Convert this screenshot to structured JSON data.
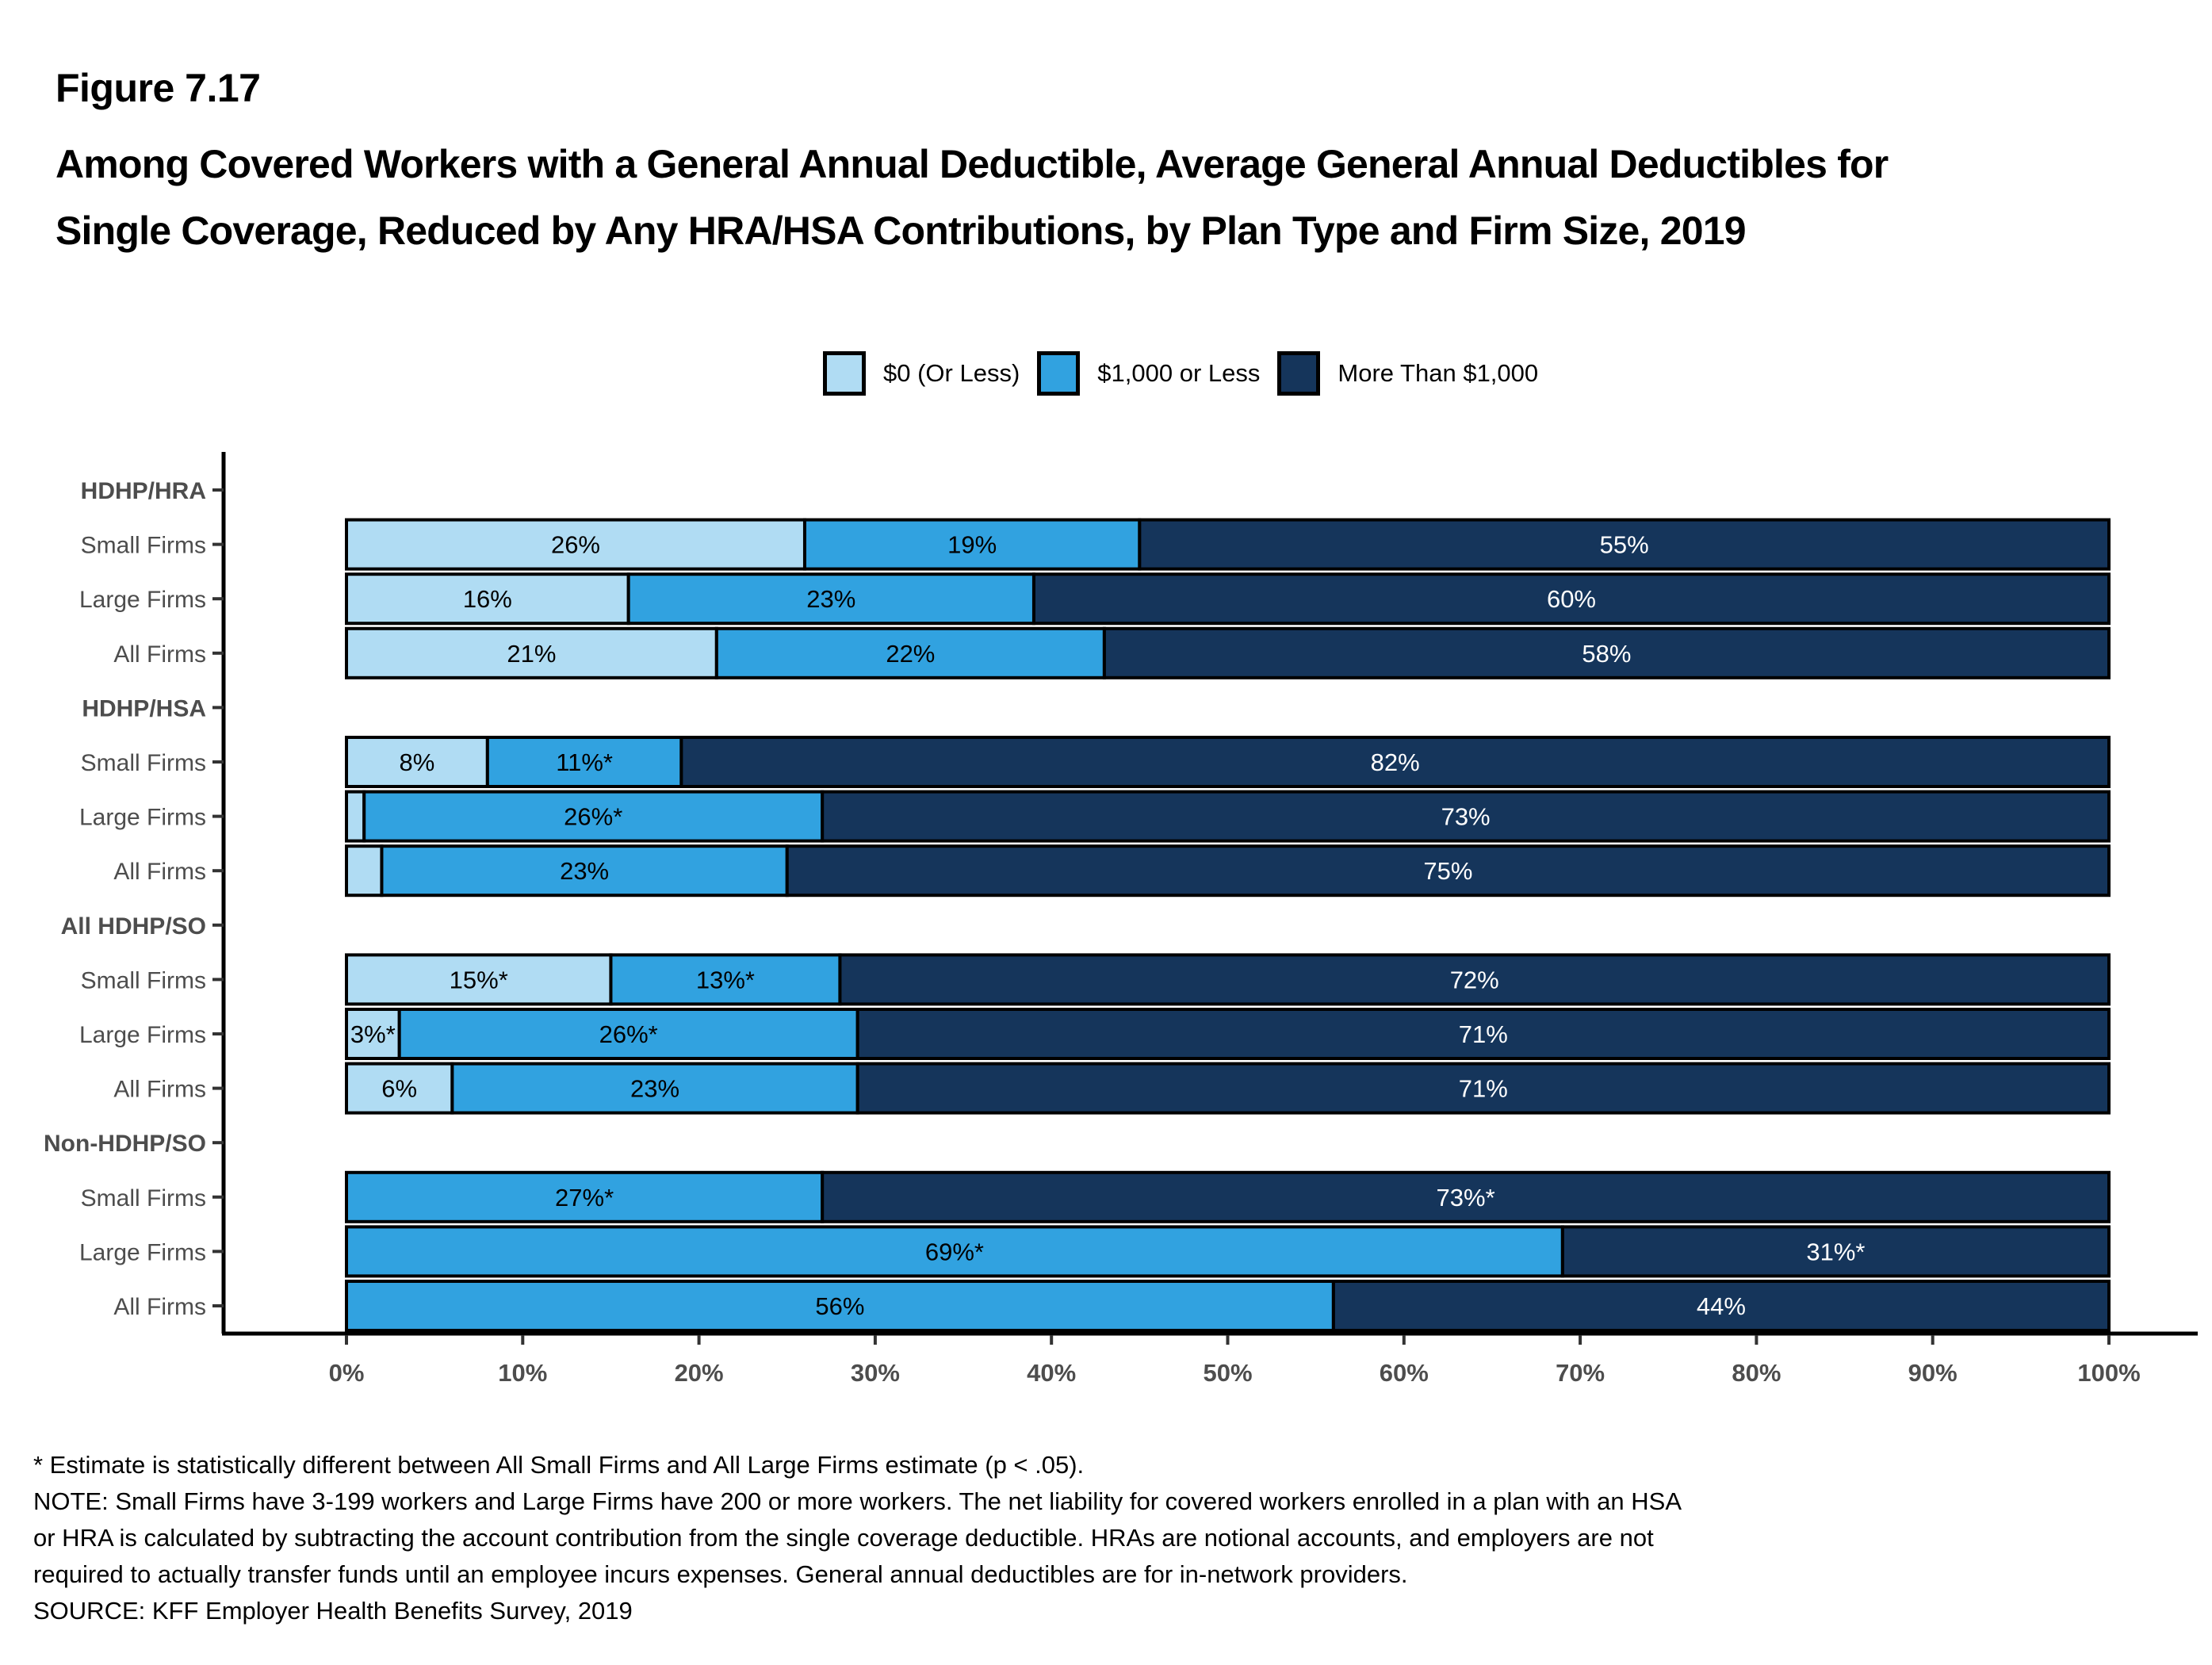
{
  "figure_number": "Figure 7.17",
  "title": "Among Covered Workers with a General Annual Deductible, Average General Annual Deductibles for Single Coverage, Reduced by Any HRA/HSA Contributions, by Plan Type and Firm Size, 2019",
  "legend": [
    {
      "label": "$0 (Or Less)",
      "color": "#b0dcf3"
    },
    {
      "label": "$1,000 or Less",
      "color": "#31a2e0"
    },
    {
      "label": "More Than $1,000",
      "color": "#15355b"
    }
  ],
  "chart_data": {
    "type": "bar",
    "orientation": "horizontal",
    "stacked": true,
    "title": "Among Covered Workers with a General Annual Deductible, Average General Annual Deductibles for Single Coverage, Reduced by Any HRA/HSA Contributions, by Plan Type and Firm Size, 2019",
    "xlabel": "",
    "ylabel": "",
    "xlim": [
      0,
      100
    ],
    "x_ticks": [
      "0%",
      "10%",
      "20%",
      "30%",
      "40%",
      "50%",
      "60%",
      "70%",
      "80%",
      "90%",
      "100%"
    ],
    "grid": false,
    "legend_position": "top",
    "series_names": [
      "$0 (Or Less)",
      "$1,000 or Less",
      "More Than $1,000"
    ],
    "series_colors": [
      "#b0dcf3",
      "#31a2e0",
      "#15355b"
    ],
    "groups": [
      {
        "name": "HDHP/HRA",
        "rows": [
          {
            "category": "Small Firms",
            "values": [
              26,
              19,
              55
            ],
            "labels": [
              "26%",
              "19%",
              "55%"
            ]
          },
          {
            "category": "Large Firms",
            "values": [
              16,
              23,
              60
            ],
            "labels": [
              "16%",
              "23%",
              "60%"
            ]
          },
          {
            "category": "All Firms",
            "values": [
              21,
              22,
              58
            ],
            "labels": [
              "21%",
              "22%",
              "58%"
            ]
          }
        ]
      },
      {
        "name": "HDHP/HSA",
        "rows": [
          {
            "category": "Small Firms",
            "values": [
              8,
              11,
              82
            ],
            "labels": [
              "8%",
              "11%*",
              "82%"
            ]
          },
          {
            "category": "Large Firms",
            "values": [
              1,
              26,
              73
            ],
            "labels": [
              "",
              "26%*",
              "73%"
            ]
          },
          {
            "category": "All Firms",
            "values": [
              2,
              23,
              75
            ],
            "labels": [
              "",
              "23%",
              "75%"
            ]
          }
        ]
      },
      {
        "name": "All HDHP/SO",
        "rows": [
          {
            "category": "Small Firms",
            "values": [
              15,
              13,
              72
            ],
            "labels": [
              "15%*",
              "13%*",
              "72%"
            ]
          },
          {
            "category": "Large Firms",
            "values": [
              3,
              26,
              71
            ],
            "labels": [
              "3%*",
              "26%*",
              "71%"
            ]
          },
          {
            "category": "All Firms",
            "values": [
              6,
              23,
              71
            ],
            "labels": [
              "6%",
              "23%",
              "71%"
            ]
          }
        ]
      },
      {
        "name": "Non-HDHP/SO",
        "rows": [
          {
            "category": "Small Firms",
            "values": [
              0,
              27,
              73
            ],
            "labels": [
              "",
              "27%*",
              "73%*"
            ]
          },
          {
            "category": "Large Firms",
            "values": [
              0,
              69,
              31
            ],
            "labels": [
              "",
              "69%*",
              "31%*"
            ]
          },
          {
            "category": "All Firms",
            "values": [
              0,
              56,
              44
            ],
            "labels": [
              "",
              "56%",
              "44%"
            ]
          }
        ]
      }
    ]
  },
  "notes": [
    "* Estimate is statistically different between All Small Firms and All Large Firms estimate (p < .05).",
    "NOTE: Small Firms have 3-199 workers and Large Firms have 200 or more workers. The net liability for covered workers enrolled in a plan with an HSA",
    "or HRA is calculated by subtracting the account contribution from the single coverage deductible. HRAs are notional accounts, and employers are not",
    "required to actually transfer funds until an employee incurs expenses. General annual deductibles are for in-network providers.",
    "SOURCE: KFF Employer Health Benefits Survey, 2019"
  ]
}
